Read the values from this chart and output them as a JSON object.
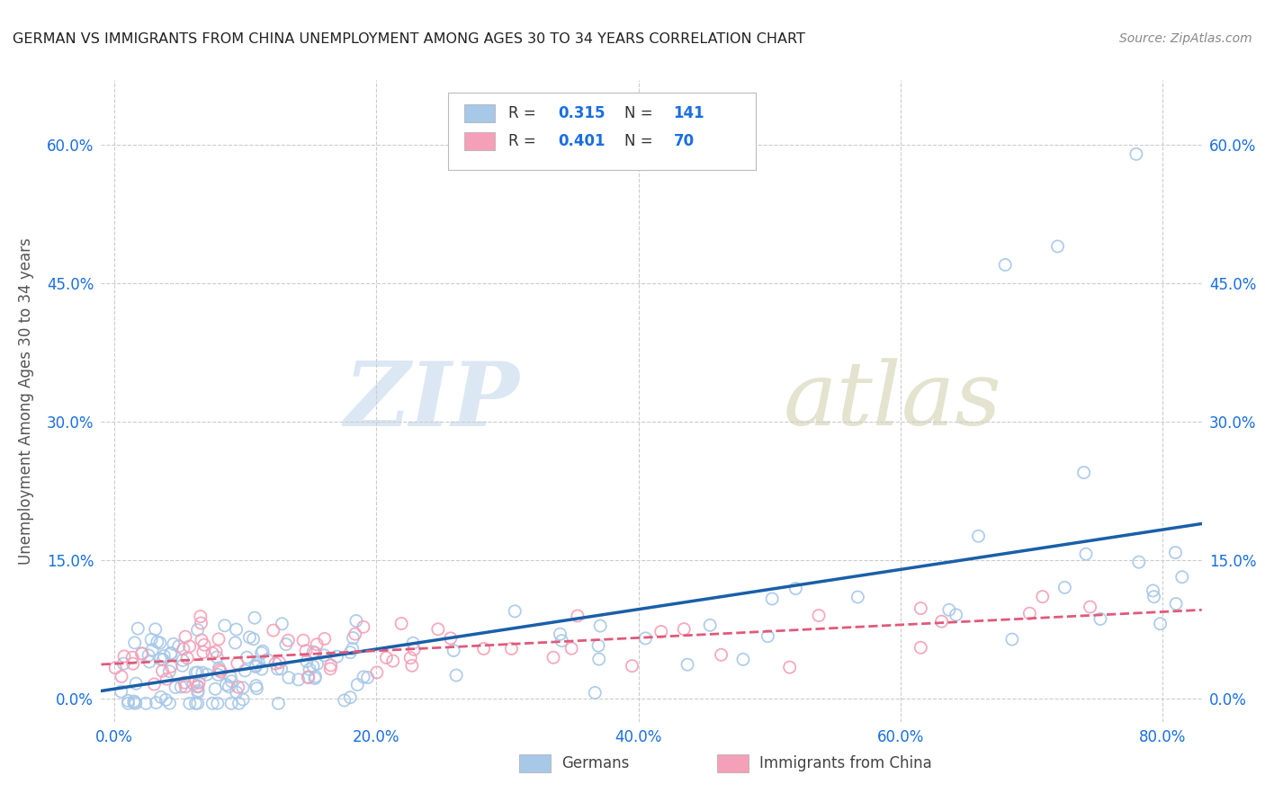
{
  "title": "GERMAN VS IMMIGRANTS FROM CHINA UNEMPLOYMENT AMONG AGES 30 TO 34 YEARS CORRELATION CHART",
  "source": "Source: ZipAtlas.com",
  "ylabel": "Unemployment Among Ages 30 to 34 years",
  "xlabel_ticks": [
    "0.0%",
    "20.0%",
    "40.0%",
    "60.0%",
    "80.0%"
  ],
  "xlabel_vals": [
    0.0,
    0.2,
    0.4,
    0.6,
    0.8
  ],
  "ylabel_ticks": [
    "0.0%",
    "15.0%",
    "30.0%",
    "45.0%",
    "60.0%"
  ],
  "ylabel_vals": [
    0.0,
    0.15,
    0.3,
    0.45,
    0.6
  ],
  "xlim": [
    -0.01,
    0.83
  ],
  "ylim": [
    -0.025,
    0.67
  ],
  "R1": "0.315",
  "N1": "141",
  "R2": "0.401",
  "N2": "70",
  "legend_label_bottom1": "Germans",
  "legend_label_bottom2": "Immigrants from China",
  "color_blue": "#a8c8e8",
  "color_pink": "#f4a0b8",
  "line_color_blue": "#1a5fa8",
  "line_color_pink": "#e05a7a",
  "watermark_zip": "ZIP",
  "watermark_atlas": "atlas",
  "background_color": "#ffffff",
  "grid_color": "#cccccc",
  "tick_color": "#1a6ee0",
  "seed_german": 42,
  "seed_china": 7
}
